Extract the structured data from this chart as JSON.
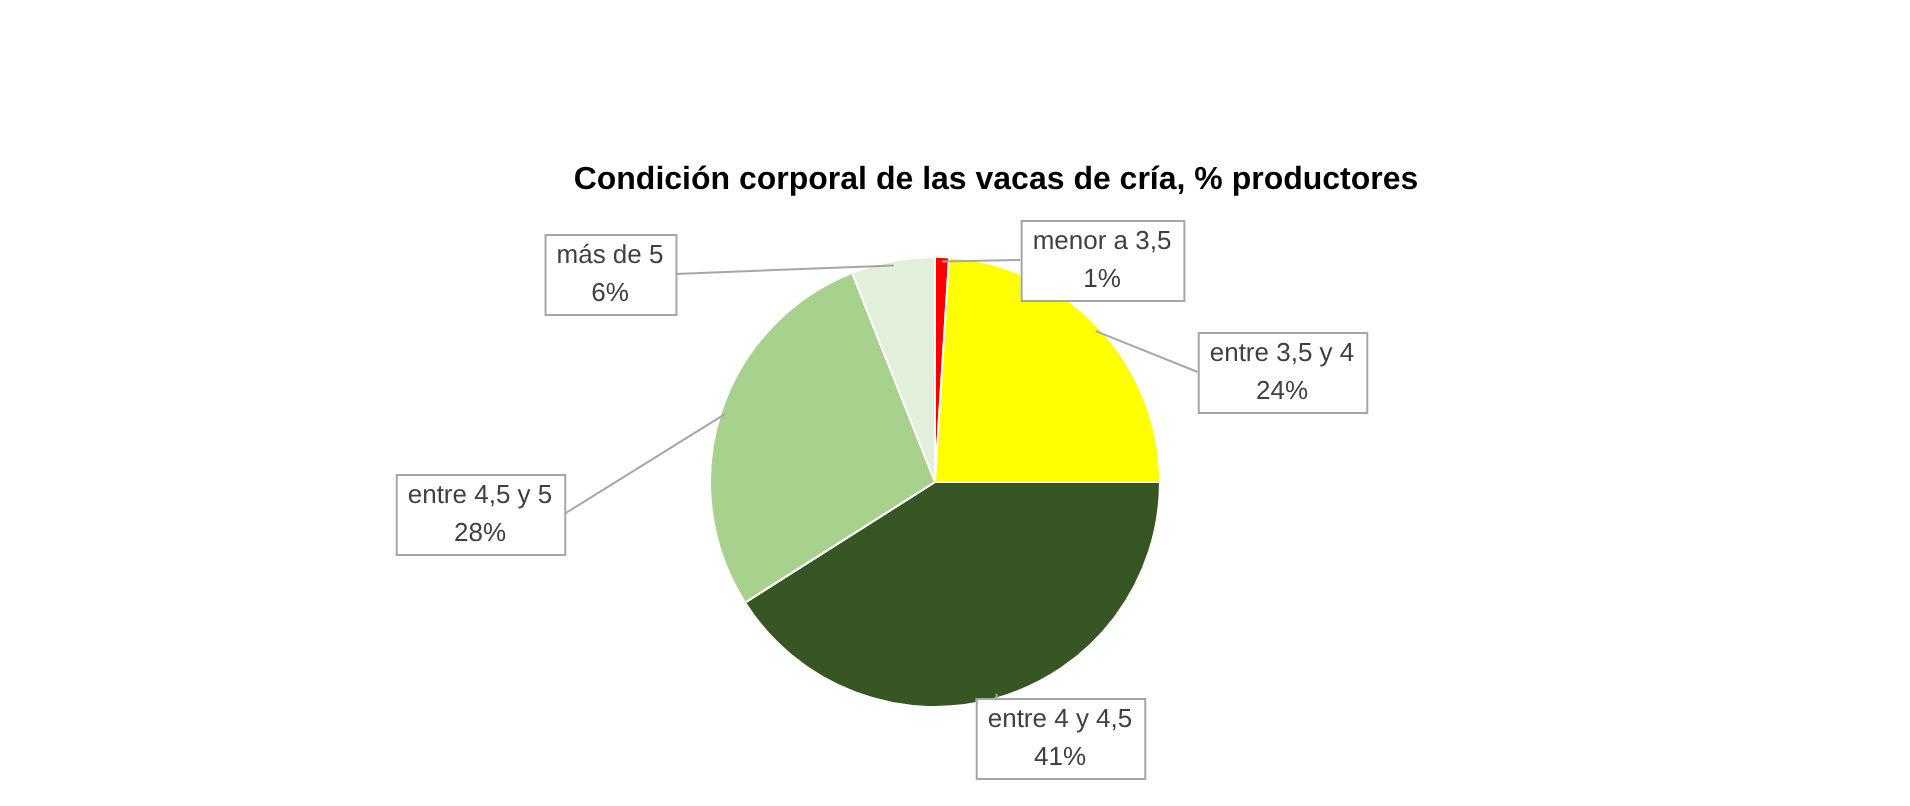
{
  "chart_data": {
    "type": "pie",
    "title": "Condición corporal de las vacas de cría, % productores",
    "categories": [
      "menor a 3,5",
      "entre 3,5 y 4",
      "entre 4 y 4,5",
      "entre 4,5 y 5",
      "más de 5"
    ],
    "values": [
      1,
      24,
      41,
      28,
      6
    ],
    "colors": [
      "#ff0000",
      "#ffff00",
      "#375623",
      "#a9d18e",
      "#e2efda"
    ],
    "value_labels": [
      "1%",
      "24%",
      "41%",
      "28%",
      "6%"
    ],
    "legend": false
  }
}
